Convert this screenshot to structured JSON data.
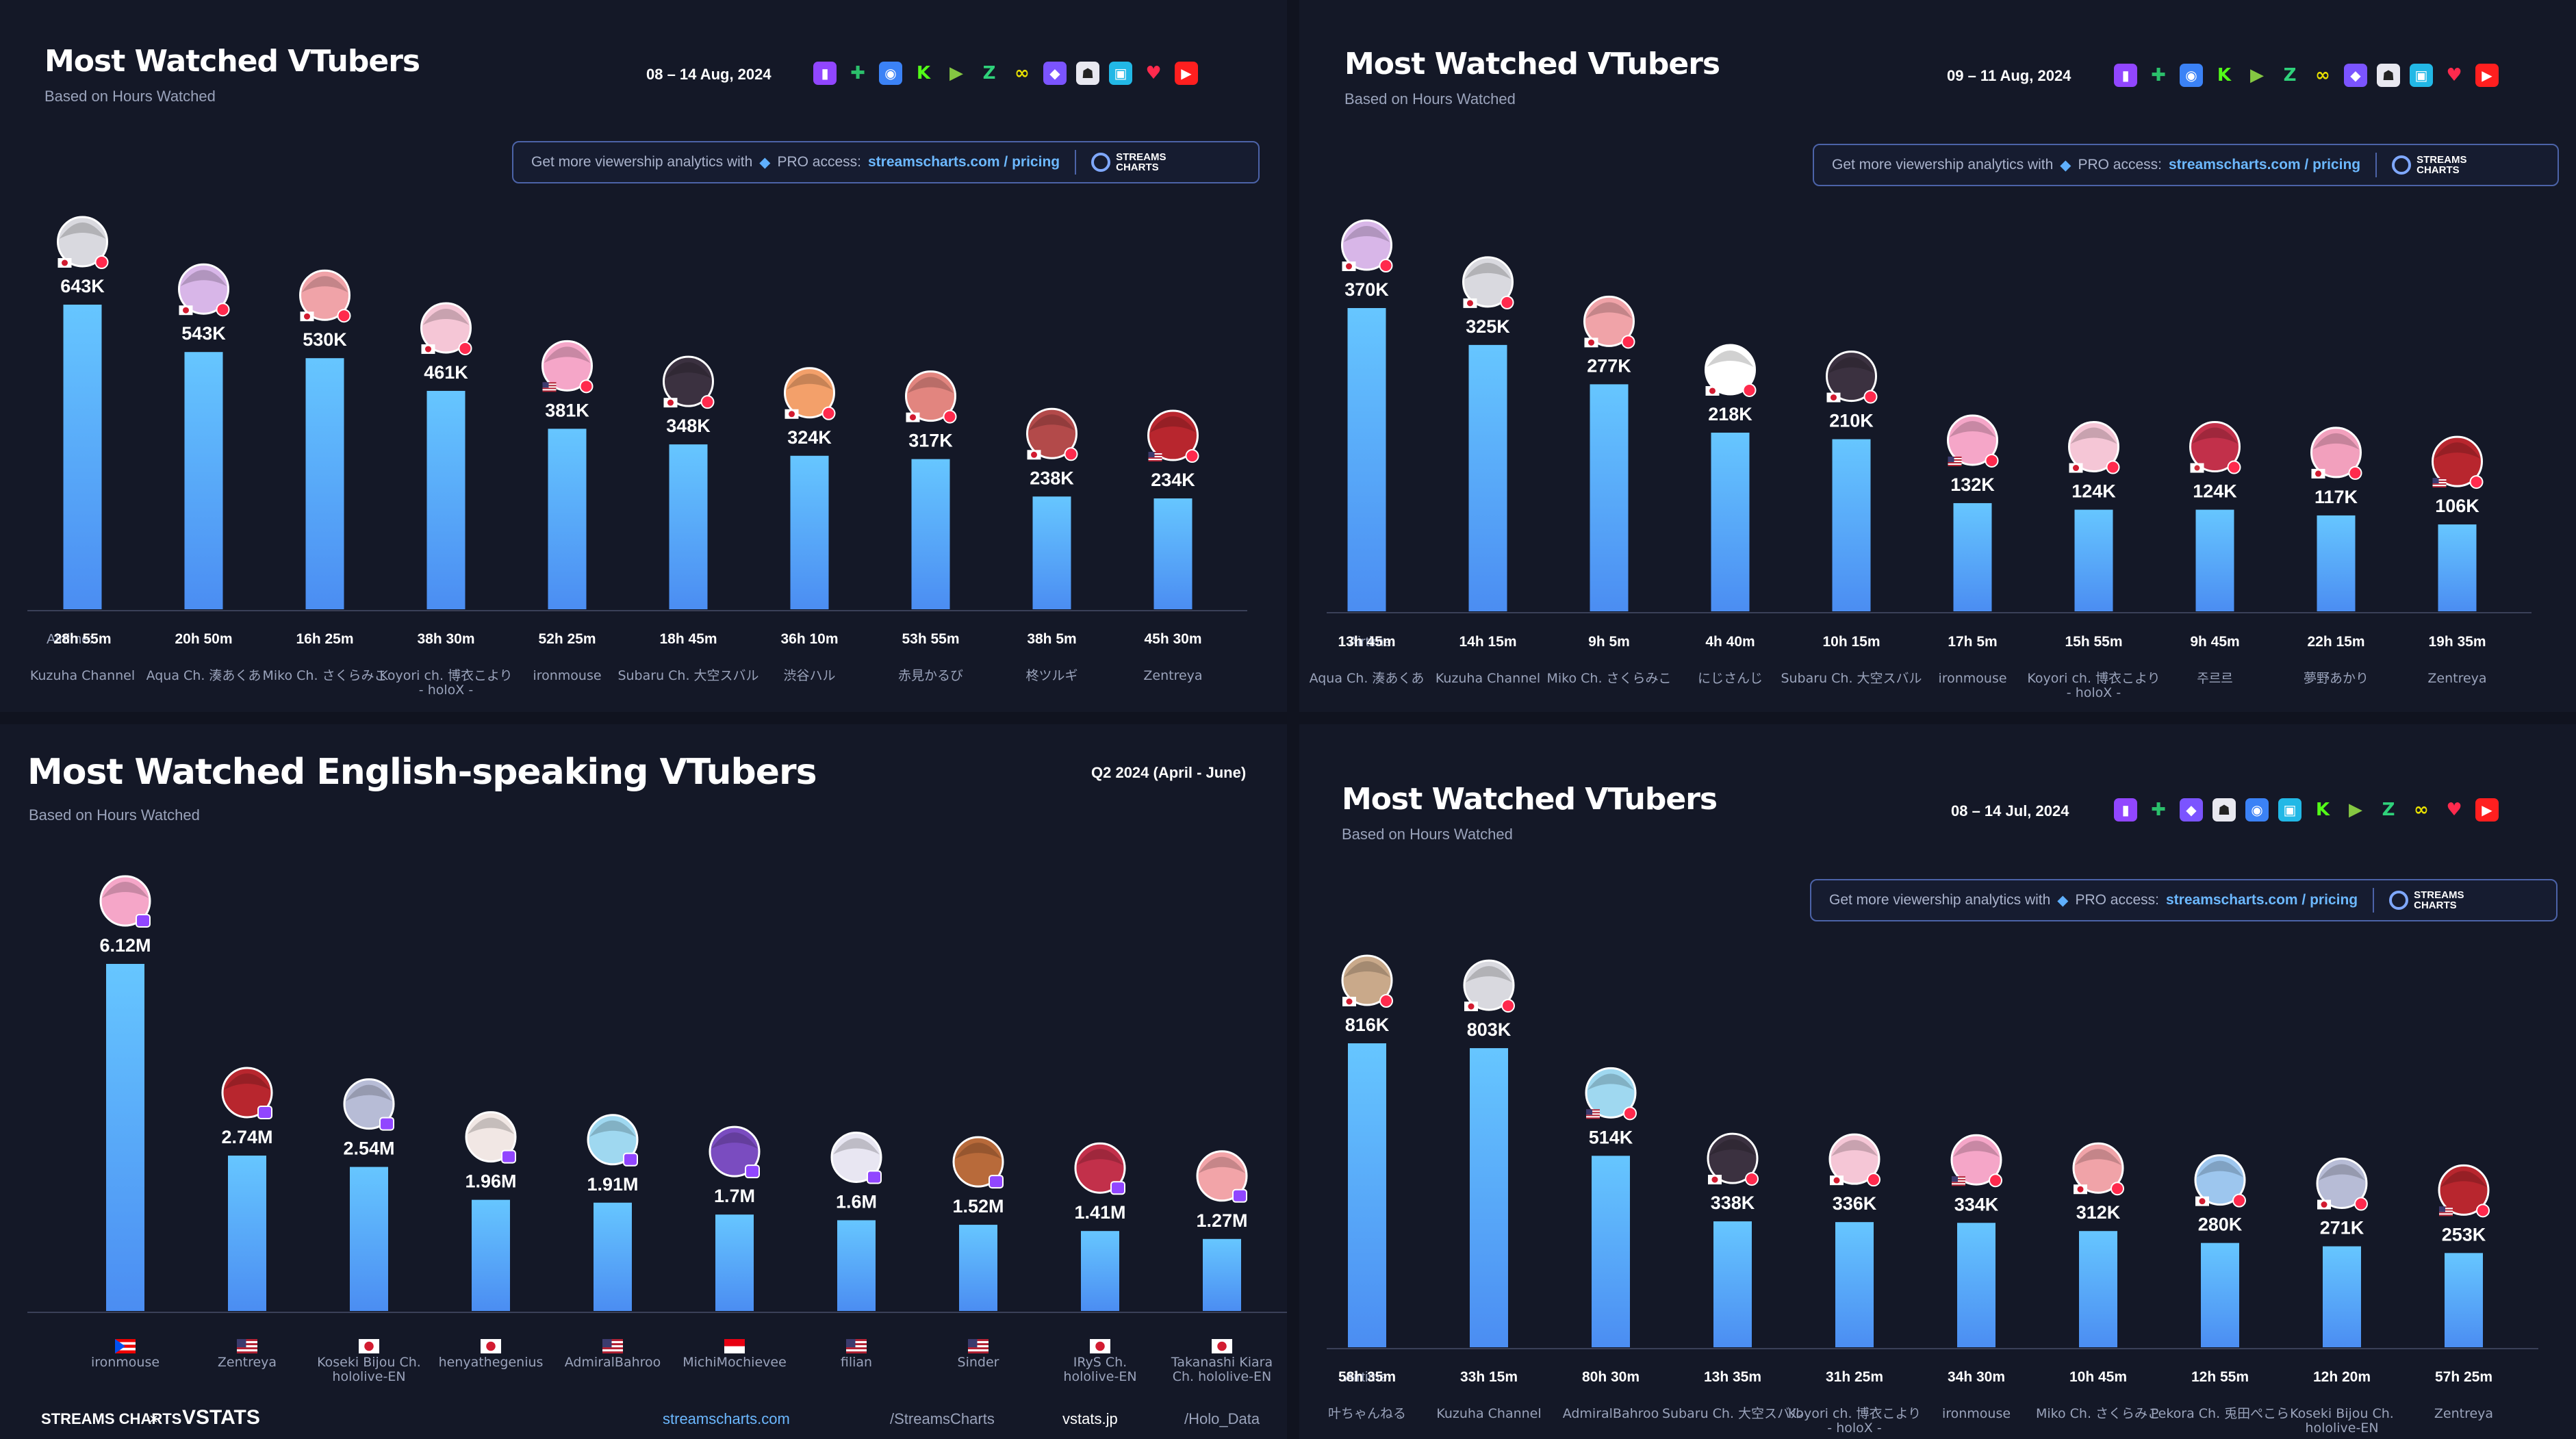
{
  "colors": {
    "bar_top": "#66c6ff",
    "bar_bottom": "#4b8df2",
    "bg": "#141827",
    "label": "#ffffff",
    "muted": "#9aa3bb",
    "link": "#6cb8ff"
  },
  "promo": {
    "text": "Get more viewership analytics with",
    "pro": "PRO access:",
    "link": "streamscharts.com / pricing",
    "brand_line1": "STREAMS",
    "brand_line2": "CHARTS"
  },
  "airtime_label": "Airtime:",
  "footer": {
    "brand_left": "STREAMS CHARTS",
    "cross": "×",
    "brand_right": "VSTATS",
    "site1": "streamscharts.com",
    "handle1": "/StreamsCharts",
    "site2": "vstats.jp",
    "handle2": "/Holo_Data"
  },
  "panels": [
    {
      "title": "Most Watched VTubers",
      "subtitle": "Based on Hours Watched",
      "date": "08 – 14 Aug, 2024",
      "platform_icons": [
        "twitch-icon",
        "kick-turtle-icon",
        "bilibili-icon",
        "kick-icon",
        "rumble-icon",
        "zhihu-icon",
        "infinity-icon",
        "trovo-icon",
        "ghost-icon",
        "nimo-icon",
        "heart-icon",
        "youtube-icon"
      ],
      "chart_data": {
        "type": "bar",
        "title": "Most Watched VTubers",
        "categories": [
          "Kuzuha Channel",
          "Aqua Ch. 湊あくあ",
          "Miko Ch. さくらみこ",
          "Koyori ch. 博衣こより - holoX -",
          "ironmouse",
          "Subaru Ch. 大空スバル",
          "渋谷ハル",
          "赤見かるび",
          "柊ツルギ",
          "Zentreya"
        ],
        "values": [
          643,
          543,
          530,
          461,
          381,
          348,
          324,
          317,
          238,
          234
        ],
        "value_labels": [
          "643K",
          "543K",
          "530K",
          "461K",
          "381K",
          "348K",
          "324K",
          "317K",
          "238K",
          "234K"
        ],
        "airtime": [
          "28h 55m",
          "20h 50m",
          "16h 25m",
          "38h 30m",
          "52h 25m",
          "18h 45m",
          "36h 10m",
          "53h 55m",
          "38h 5m",
          "45h 30m"
        ],
        "avatar_colors": [
          "#d9d9df",
          "#d8b6e8",
          "#f0a3a8",
          "#f5c6d6",
          "#f5a6c8",
          "#3b3140",
          "#f3a06a",
          "#e2857f",
          "#b34a4a",
          "#b8262e"
        ],
        "flags": [
          "jp",
          "jp",
          "jp",
          "jp",
          "us",
          "jp",
          "jp",
          "jp",
          "jp",
          "us"
        ],
        "ylim": [
          0,
          643
        ]
      }
    },
    {
      "title": "Most Watched VTubers",
      "subtitle": "Based on Hours Watched",
      "date": "09 – 11 Aug, 2024",
      "platform_icons": [
        "twitch-icon",
        "kick-turtle-icon",
        "bilibili-icon",
        "kick-icon",
        "rumble-icon",
        "zhihu-icon",
        "infinity-icon",
        "trovo-icon",
        "ghost-icon",
        "nimo-icon",
        "heart-icon",
        "youtube-icon"
      ],
      "chart_data": {
        "type": "bar",
        "title": "Most Watched VTubers",
        "categories": [
          "Aqua Ch. 湊あくあ",
          "Kuzuha Channel",
          "Miko Ch. さくらみこ",
          "にじさんじ",
          "Subaru Ch. 大空スバル",
          "ironmouse",
          "Koyori ch. 博衣こより - holoX -",
          "주르르",
          "夢野あかり",
          "Zentreya"
        ],
        "values": [
          370,
          325,
          277,
          218,
          210,
          132,
          124,
          124,
          117,
          106
        ],
        "value_labels": [
          "370K",
          "325K",
          "277K",
          "218K",
          "210K",
          "132K",
          "124K",
          "124K",
          "117K",
          "106K"
        ],
        "airtime": [
          "13h 45m",
          "14h 15m",
          "9h 5m",
          "4h 40m",
          "10h 15m",
          "17h 5m",
          "15h 55m",
          "9h 45m",
          "22h 15m",
          "19h 35m"
        ],
        "avatar_colors": [
          "#d8b6e8",
          "#d9d9df",
          "#f0a3a8",
          "#ffffff",
          "#3b3140",
          "#f5a6c8",
          "#f5c6d6",
          "#c2304a",
          "#f2a0bd",
          "#b8262e"
        ],
        "flags": [
          "jp",
          "jp",
          "jp",
          "jp",
          "jp",
          "us",
          "jp",
          "kr",
          "jp",
          "us"
        ],
        "ylim": [
          0,
          370
        ]
      }
    },
    {
      "title": "Most Watched English-speaking VTubers",
      "subtitle": "Based on Hours Watched",
      "date": "Q2 2024 (April - June)",
      "chart_data": {
        "type": "bar",
        "title": "Most Watched English-speaking VTubers",
        "categories": [
          "ironmouse",
          "Zentreya",
          "Koseki Bijou Ch. hololive-EN",
          "henyathegenius",
          "AdmiralBahroo",
          "MichiMochievee",
          "filian",
          "Sinder",
          "IRyS Ch. hololive-EN",
          "Takanashi Kiara Ch. hololive-EN"
        ],
        "values": [
          6.12,
          2.74,
          2.54,
          1.96,
          1.91,
          1.7,
          1.6,
          1.52,
          1.41,
          1.27
        ],
        "value_labels": [
          "6.12M",
          "2.74M",
          "2.54M",
          "1.96M",
          "1.91M",
          "1.7M",
          "1.6M",
          "1.52M",
          "1.41M",
          "1.27M"
        ],
        "avatar_colors": [
          "#f5a6c8",
          "#b8262e",
          "#b7bcd6",
          "#f1e7e4",
          "#9fd8f0",
          "#7a4cc0",
          "#e8e6f2",
          "#b86a3a",
          "#c2304a",
          "#f2a4a8"
        ],
        "flags": [
          "pr",
          "us",
          "jp",
          "jp",
          "us",
          "id",
          "us",
          "us",
          "jp",
          "jp"
        ],
        "ylim": [
          0,
          6.12
        ]
      }
    },
    {
      "title": "Most Watched VTubers",
      "subtitle": "Based on Hours Watched",
      "date": "08 – 14 Jul, 2024",
      "platform_icons": [
        "twitch-icon",
        "kick-turtle-icon",
        "trovo-icon",
        "ghost-icon",
        "bilibili-icon",
        "nimo-icon",
        "kick-icon",
        "rumble-icon",
        "zhihu-icon",
        "infinity-icon",
        "heart-icon",
        "youtube-icon"
      ],
      "chart_data": {
        "type": "bar",
        "title": "Most Watched VTubers",
        "categories": [
          "叶ちゃんねる",
          "Kuzuha Channel",
          "AdmiralBahroo",
          "Subaru Ch. 大空スバル",
          "Koyori ch. 博衣こより - holoX -",
          "ironmouse",
          "Miko Ch. さくらみこ",
          "Pekora Ch. 兎田ぺこら",
          "Koseki Bijou Ch. hololive-EN",
          "Zentreya"
        ],
        "values": [
          816,
          803,
          514,
          338,
          336,
          334,
          312,
          280,
          271,
          253
        ],
        "value_labels": [
          "816K",
          "803K",
          "514K",
          "338K",
          "336K",
          "334K",
          "312K",
          "280K",
          "271K",
          "253K"
        ],
        "airtime": [
          "58h 35m",
          "33h 15m",
          "80h 30m",
          "13h 35m",
          "31h 25m",
          "34h 30m",
          "10h 45m",
          "12h 55m",
          "12h 20m",
          "57h 25m"
        ],
        "avatar_colors": [
          "#c9a98a",
          "#d9d9df",
          "#9fd8f0",
          "#3b3140",
          "#f5c6d6",
          "#f5a6c8",
          "#f0a3a8",
          "#9dc6ee",
          "#b7bcd6",
          "#b8262e"
        ],
        "flags": [
          "jp",
          "jp",
          "us",
          "jp",
          "jp",
          "us",
          "jp",
          "jp",
          "jp",
          "us"
        ],
        "ylim": [
          0,
          816
        ]
      }
    }
  ]
}
